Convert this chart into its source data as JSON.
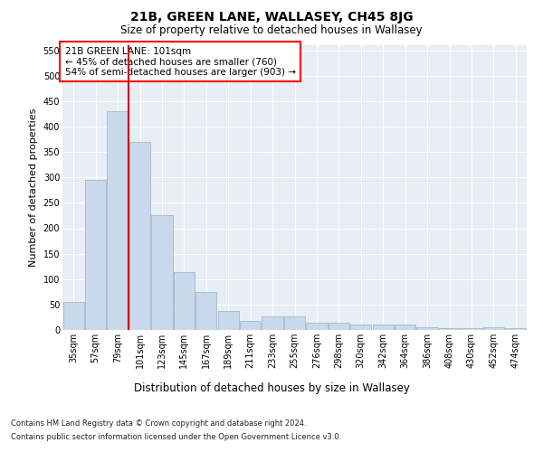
{
  "title": "21B, GREEN LANE, WALLASEY, CH45 8JG",
  "subtitle": "Size of property relative to detached houses in Wallasey",
  "xlabel": "Distribution of detached houses by size in Wallasey",
  "ylabel": "Number of detached properties",
  "footer1": "Contains HM Land Registry data © Crown copyright and database right 2024.",
  "footer2": "Contains public sector information licensed under the Open Government Licence v3.0.",
  "annotation_line1": "21B GREEN LANE: 101sqm",
  "annotation_line2": "← 45% of detached houses are smaller (760)",
  "annotation_line3": "54% of semi-detached houses are larger (903) →",
  "bar_color": "#c9d9eb",
  "bar_edge_color": "#a0b8d0",
  "red_line_color": "#cc0000",
  "categories": [
    "35sqm",
    "57sqm",
    "79sqm",
    "101sqm",
    "123sqm",
    "145sqm",
    "167sqm",
    "189sqm",
    "211sqm",
    "233sqm",
    "255sqm",
    "276sqm",
    "298sqm",
    "320sqm",
    "342sqm",
    "364sqm",
    "386sqm",
    "408sqm",
    "430sqm",
    "452sqm",
    "474sqm"
  ],
  "values": [
    55,
    295,
    430,
    370,
    225,
    113,
    75,
    38,
    17,
    27,
    27,
    15,
    15,
    10,
    10,
    10,
    6,
    4,
    4,
    6,
    4
  ],
  "ylim": [
    0,
    560
  ],
  "yticks": [
    0,
    50,
    100,
    150,
    200,
    250,
    300,
    350,
    400,
    450,
    500,
    550
  ],
  "background_color": "#e8eef5",
  "grid_color": "#ffffff",
  "title_fontsize": 10,
  "subtitle_fontsize": 8.5,
  "ylabel_fontsize": 8,
  "xlabel_fontsize": 8.5,
  "tick_fontsize": 7,
  "footer_fontsize": 6,
  "annotation_fontsize": 7.5
}
